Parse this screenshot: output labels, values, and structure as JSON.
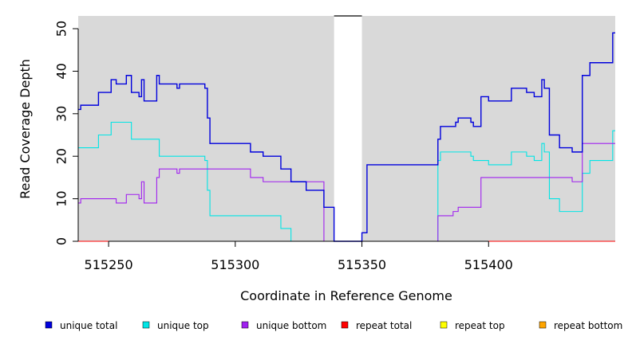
{
  "chart_data": {
    "type": "line",
    "xlabel": "Coordinate in Reference Genome",
    "ylabel": "Read Coverage Depth",
    "xlim": [
      515238,
      515450
    ],
    "ylim": [
      0,
      53
    ],
    "x_ticks": [
      515250,
      515300,
      515350,
      515400
    ],
    "x_tick_labels": [
      "515250",
      "515300",
      "515350",
      "515400"
    ],
    "y_ticks": [
      0,
      10,
      20,
      30,
      40,
      50
    ],
    "y_tick_labels": [
      "0",
      "10",
      "20",
      "30",
      "40",
      "50"
    ],
    "gap": [
      515339,
      515350
    ],
    "background_color": "#d9d9d9",
    "grid": false,
    "legend_position": "bottom",
    "series": [
      {
        "name": "unique total",
        "color": "#0000dd",
        "points": [
          [
            515238,
            31
          ],
          [
            515239,
            32
          ],
          [
            515246,
            35
          ],
          [
            515251,
            38
          ],
          [
            515253,
            37
          ],
          [
            515257,
            39
          ],
          [
            515259,
            35
          ],
          [
            515262,
            34
          ],
          [
            515263,
            38
          ],
          [
            515264,
            33
          ],
          [
            515269,
            39
          ],
          [
            515270,
            37
          ],
          [
            515277,
            36
          ],
          [
            515278,
            37
          ],
          [
            515288,
            36
          ],
          [
            515289,
            29
          ],
          [
            515290,
            23
          ],
          [
            515306,
            21
          ],
          [
            515311,
            20
          ],
          [
            515318,
            17
          ],
          [
            515322,
            14
          ],
          [
            515328,
            12
          ],
          [
            515335,
            8
          ],
          [
            515339,
            0
          ],
          [
            515350,
            2
          ],
          [
            515352,
            18
          ],
          [
            515380,
            24
          ],
          [
            515381,
            27
          ],
          [
            515387,
            28
          ],
          [
            515388,
            29
          ],
          [
            515393,
            28
          ],
          [
            515394,
            27
          ],
          [
            515397,
            34
          ],
          [
            515400,
            33
          ],
          [
            515409,
            36
          ],
          [
            515415,
            35
          ],
          [
            515418,
            34
          ],
          [
            515421,
            38
          ],
          [
            515422,
            36
          ],
          [
            515424,
            25
          ],
          [
            515428,
            22
          ],
          [
            515433,
            21
          ],
          [
            515437,
            39
          ],
          [
            515440,
            42
          ],
          [
            515449,
            49
          ],
          [
            515450,
            49
          ]
        ]
      },
      {
        "name": "unique top",
        "color": "#00e5e5",
        "points": [
          [
            515238,
            22
          ],
          [
            515246,
            25
          ],
          [
            515251,
            28
          ],
          [
            515259,
            24
          ],
          [
            515270,
            20
          ],
          [
            515288,
            19
          ],
          [
            515289,
            12
          ],
          [
            515290,
            6
          ],
          [
            515318,
            3
          ],
          [
            515322,
            0
          ],
          [
            515339,
            0
          ],
          [
            515380,
            19
          ],
          [
            515381,
            21
          ],
          [
            515393,
            20
          ],
          [
            515394,
            19
          ],
          [
            515400,
            18
          ],
          [
            515409,
            21
          ],
          [
            515415,
            20
          ],
          [
            515418,
            19
          ],
          [
            515421,
            23
          ],
          [
            515422,
            21
          ],
          [
            515424,
            10
          ],
          [
            515428,
            7
          ],
          [
            515437,
            16
          ],
          [
            515440,
            19
          ],
          [
            515449,
            26
          ],
          [
            515450,
            26
          ]
        ]
      },
      {
        "name": "unique bottom",
        "color": "#a020f0",
        "points": [
          [
            515238,
            9
          ],
          [
            515239,
            10
          ],
          [
            515253,
            9
          ],
          [
            515257,
            11
          ],
          [
            515262,
            10
          ],
          [
            515263,
            14
          ],
          [
            515264,
            9
          ],
          [
            515269,
            15
          ],
          [
            515270,
            17
          ],
          [
            515277,
            16
          ],
          [
            515278,
            17
          ],
          [
            515306,
            15
          ],
          [
            515311,
            14
          ],
          [
            515328,
            14
          ],
          [
            515335,
            0
          ],
          [
            515380,
            6
          ],
          [
            515386,
            7
          ],
          [
            515388,
            8
          ],
          [
            515397,
            15
          ],
          [
            515433,
            14
          ],
          [
            515437,
            23
          ],
          [
            515450,
            23
          ]
        ]
      },
      {
        "name": "repeat total",
        "color": "#ff0000",
        "points": [
          [
            515238,
            0
          ],
          [
            515450,
            0
          ]
        ]
      },
      {
        "name": "repeat top",
        "color": "#ffff00",
        "points": [
          [
            515238,
            0
          ],
          [
            515450,
            0
          ]
        ]
      },
      {
        "name": "repeat bottom",
        "color": "#ffa500",
        "points": [
          [
            515238,
            0
          ],
          [
            515450,
            0
          ]
        ]
      }
    ]
  }
}
